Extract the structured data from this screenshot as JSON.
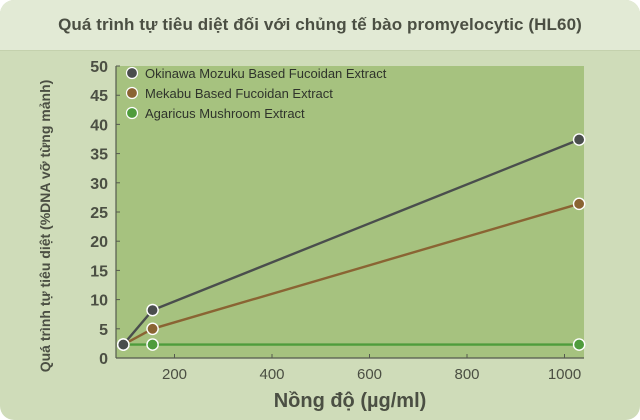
{
  "chart_data": {
    "type": "line",
    "title": "Quá trình tự tiêu diệt đối với chủng tế bào promyelocytic (HL60)",
    "xlabel": "Nồng độ (µg/ml)",
    "ylabel": "Quá trình tự tiêu diệt (%DNA vỡ từng mảnh)",
    "xlim": [
      80,
      1040
    ],
    "ylim": [
      0,
      50
    ],
    "xticks": [
      200,
      400,
      600,
      800,
      1000
    ],
    "yticks": [
      0,
      5,
      10,
      15,
      20,
      25,
      30,
      35,
      40,
      45,
      50
    ],
    "grid": false,
    "legend_position": "top-left",
    "background_color": "#a6c27f",
    "series": [
      {
        "name": "Okinawa Mozuku Based Fucoidan Extract",
        "color": "#4a4e4d",
        "x": [
          95,
          155,
          1030
        ],
        "y": [
          2.3,
          8.2,
          37.4
        ]
      },
      {
        "name": "Mekabu Based Fucoidan Extract",
        "color": "#8a6433",
        "x": [
          95,
          155,
          1030
        ],
        "y": [
          2.3,
          5.0,
          26.4
        ]
      },
      {
        "name": "Agaricus Mushroom Extract",
        "color": "#4f9c3c",
        "x": [
          95,
          155,
          1030
        ],
        "y": [
          2.3,
          2.3,
          2.3
        ]
      }
    ]
  }
}
